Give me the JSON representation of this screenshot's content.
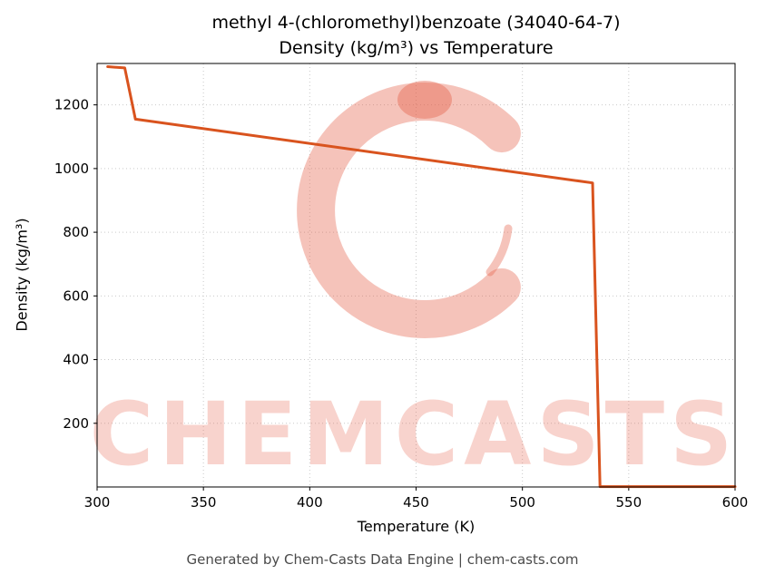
{
  "header": {
    "title_line1": "methyl 4-(chloromethyl)benzoate (34040-64-7)",
    "title_line2": "Density (kg/m³) vs Temperature"
  },
  "footer": {
    "text": "Generated by Chem-Casts Data Engine | chem-casts.com"
  },
  "watermark": {
    "text": "CHEMCASTS",
    "color": "#e5614a"
  },
  "chart_data": {
    "type": "line",
    "title": "methyl 4-(chloromethyl)benzoate (34040-64-7) — Density (kg/m³) vs Temperature",
    "xlabel": "Temperature (K)",
    "ylabel": "Density (kg/m³)",
    "xlim": [
      300,
      600
    ],
    "ylim": [
      0,
      1330
    ],
    "x_ticks": [
      300,
      350,
      400,
      450,
      500,
      550,
      600
    ],
    "y_ticks": [
      200,
      400,
      600,
      800,
      1000,
      1200
    ],
    "grid": true,
    "legend": false,
    "line_color": "#d9531e",
    "series": [
      {
        "name": "Density",
        "points": [
          [
            305,
            1320
          ],
          [
            313,
            1316
          ],
          [
            318,
            1155
          ],
          [
            533,
            955
          ],
          [
            536.5,
            1
          ],
          [
            600,
            1
          ]
        ]
      }
    ]
  }
}
